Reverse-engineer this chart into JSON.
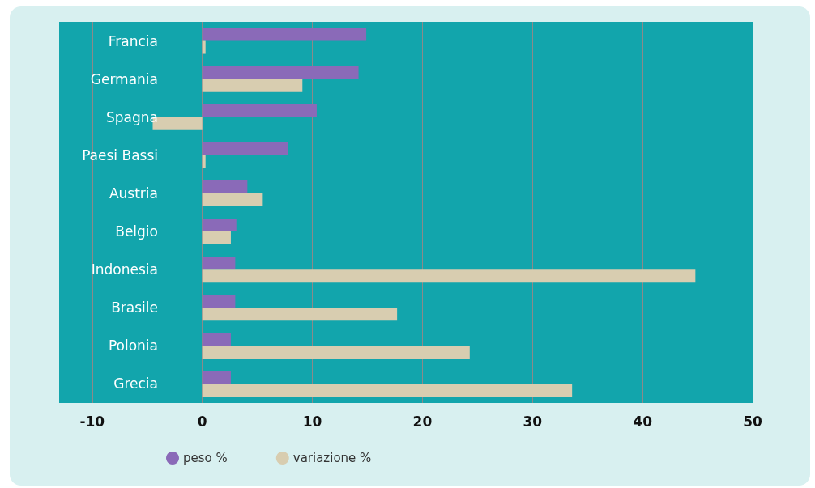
{
  "chart_data": {
    "type": "bar",
    "orientation": "horizontal",
    "categories": [
      "Francia",
      "Germania",
      "Spagna",
      "Paesi Bassi",
      "Austria",
      "Belgio",
      "Indonesia",
      "Brasile",
      "Polonia",
      "Grecia"
    ],
    "series": [
      {
        "name": "peso %",
        "color": "#8a6ab8",
        "values": [
          14.9,
          14.2,
          10.4,
          7.8,
          4.1,
          3.1,
          3.0,
          3.0,
          2.6,
          2.6
        ]
      },
      {
        "name": "variazione %",
        "color": "#d8cdb0",
        "values": [
          0.3,
          9.1,
          -4.5,
          0.3,
          5.5,
          2.6,
          44.8,
          17.7,
          24.3,
          33.6
        ]
      }
    ],
    "xlim": [
      -13,
      50
    ],
    "xticks": [
      -10,
      0,
      10,
      20,
      30,
      40,
      50
    ],
    "grid": "x",
    "legend": "bottom left"
  }
}
